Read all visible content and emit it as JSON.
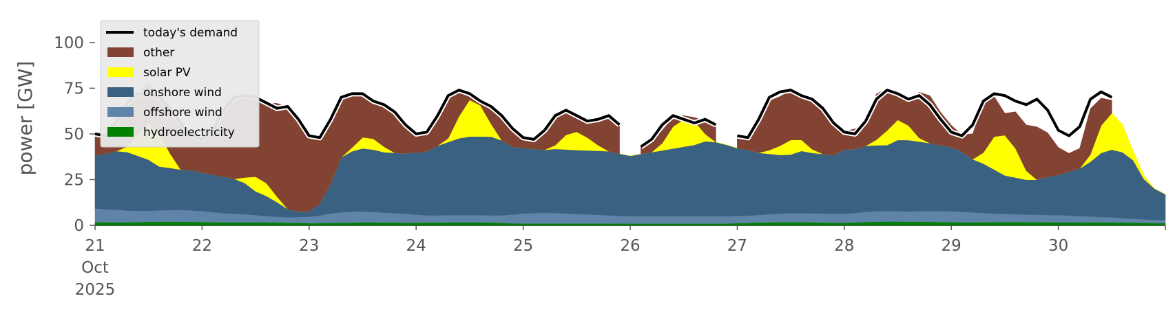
{
  "chart_data": {
    "type": "area",
    "ylabel": "power [GW]",
    "ylim": [
      0,
      118
    ],
    "yticks": [
      0,
      25,
      50,
      75,
      100
    ],
    "xlim": [
      21,
      31
    ],
    "xticks": [
      {
        "value": 21,
        "label": "21",
        "sub": [
          "Oct",
          "2025"
        ]
      },
      {
        "value": 22,
        "label": "22"
      },
      {
        "value": 23,
        "label": "23"
      },
      {
        "value": 24,
        "label": "24"
      },
      {
        "value": 25,
        "label": "25"
      },
      {
        "value": 26,
        "label": "26"
      },
      {
        "value": 27,
        "label": "27"
      },
      {
        "value": 28,
        "label": "28"
      },
      {
        "value": 29,
        "label": "29"
      },
      {
        "value": 30,
        "label": "30"
      },
      {
        "value": 31,
        "label": ""
      }
    ],
    "legend_position": "top-left",
    "x": [
      21.0,
      21.1,
      21.2,
      21.3,
      21.4,
      21.5,
      21.6,
      21.7,
      21.8,
      21.9,
      22.0,
      22.1,
      22.2,
      22.3,
      22.4,
      22.5,
      22.6,
      22.7,
      22.8,
      22.9,
      23.0,
      23.1,
      23.2,
      23.3,
      23.4,
      23.5,
      23.6,
      23.7,
      23.8,
      23.9,
      24.0,
      24.1,
      24.2,
      24.3,
      24.4,
      24.5,
      24.6,
      24.7,
      24.8,
      24.9,
      25.0,
      25.1,
      25.2,
      25.3,
      25.4,
      25.5,
      25.6,
      25.7,
      25.8,
      25.9,
      26.0,
      26.1,
      26.2,
      26.3,
      26.4,
      26.5,
      26.6,
      26.7,
      26.8,
      26.9,
      27.0,
      27.1,
      27.2,
      27.3,
      27.4,
      27.5,
      27.6,
      27.7,
      27.8,
      27.9,
      28.0,
      28.1,
      28.2,
      28.3,
      28.4,
      28.5,
      28.6,
      28.7,
      28.8,
      28.9,
      29.0,
      29.1,
      29.2,
      29.3,
      29.4,
      29.5,
      29.6,
      29.7,
      29.8,
      29.9,
      30.0,
      30.1,
      30.2,
      30.3,
      30.4,
      30.5,
      30.6,
      30.7,
      30.8,
      30.9,
      31.0
    ],
    "demand": [
      50,
      49,
      57,
      67,
      72,
      72,
      70,
      64,
      56,
      49,
      47,
      52,
      63,
      70,
      71,
      70,
      67,
      64,
      65,
      58,
      49,
      48,
      58,
      70,
      72,
      72,
      68,
      66,
      62,
      55,
      50,
      51,
      60,
      71,
      74,
      72,
      68,
      65,
      60,
      53,
      48,
      47,
      52,
      60,
      63,
      60,
      57,
      58,
      60,
      55,
      null,
      43,
      47,
      55,
      60,
      58,
      56,
      58,
      55,
      null,
      49,
      48,
      58,
      70,
      73,
      74,
      71,
      69,
      64,
      56,
      51,
      50,
      57,
      69,
      74,
      72,
      69,
      71,
      66,
      58,
      51,
      49,
      55,
      68,
      72,
      71,
      68,
      66,
      69,
      63,
      52,
      49,
      54,
      69,
      73,
      70,
      null,
      null,
      null,
      null,
      null
    ],
    "series": [
      {
        "name": "hydroelectricity",
        "color": "#008000",
        "values": [
          1.8,
          1.6,
          1.6,
          1.6,
          1.8,
          1.9,
          2.0,
          2.0,
          2.0,
          1.9,
          1.8,
          1.7,
          1.6,
          1.6,
          1.6,
          1.6,
          1.6,
          1.5,
          1.4,
          1.3,
          1.2,
          1.2,
          1.3,
          1.4,
          1.5,
          1.6,
          1.6,
          1.5,
          1.5,
          1.4,
          1.4,
          1.5,
          1.5,
          1.6,
          1.6,
          1.6,
          1.6,
          1.5,
          1.3,
          1.1,
          1.0,
          1.0,
          1.0,
          1.0,
          1.0,
          1.0,
          1.0,
          1.0,
          1.0,
          1.0,
          1.0,
          1.0,
          1.0,
          1.0,
          1.0,
          1.0,
          1.0,
          1.0,
          1.0,
          1.0,
          1.2,
          1.3,
          1.5,
          1.6,
          1.7,
          1.7,
          1.7,
          1.6,
          1.5,
          1.4,
          1.4,
          1.6,
          1.8,
          2.0,
          2.1,
          2.1,
          2.0,
          2.0,
          1.9,
          1.8,
          1.7,
          1.6,
          1.6,
          1.6,
          1.7,
          1.8,
          1.8,
          1.7,
          1.7,
          1.6,
          1.6,
          1.6,
          1.6,
          1.6,
          1.6,
          1.6,
          1.5,
          1.4,
          1.3,
          1.2,
          1.2
        ]
      },
      {
        "name": "offshore wind",
        "color": "#5f84a7",
        "values": [
          7.5,
          7.2,
          7.0,
          6.5,
          6.2,
          6.0,
          6.2,
          6.4,
          6.5,
          6.3,
          6.0,
          5.5,
          5.0,
          4.8,
          4.5,
          4.0,
          3.5,
          3.2,
          3.0,
          3.2,
          3.5,
          4.2,
          5.2,
          5.8,
          6.0,
          6.0,
          5.8,
          5.5,
          5.2,
          5.0,
          4.5,
          4.0,
          4.0,
          4.0,
          4.0,
          4.0,
          4.0,
          4.0,
          4.2,
          4.8,
          5.5,
          5.8,
          5.8,
          5.8,
          5.5,
          5.2,
          5.0,
          4.8,
          4.5,
          4.2,
          4.0,
          4.0,
          4.0,
          4.0,
          4.0,
          4.0,
          4.0,
          4.0,
          4.0,
          4.0,
          4.0,
          4.0,
          4.2,
          4.5,
          4.8,
          5.0,
          5.0,
          5.0,
          5.0,
          5.0,
          5.0,
          5.2,
          5.6,
          5.8,
          5.8,
          5.6,
          5.6,
          5.8,
          6.0,
          6.0,
          6.0,
          5.8,
          5.5,
          5.2,
          4.8,
          4.5,
          4.3,
          4.2,
          4.2,
          4.0,
          4.0,
          3.8,
          3.5,
          3.2,
          3.0,
          2.8,
          2.5,
          2.2,
          2.0,
          1.8,
          1.8
        ]
      },
      {
        "name": "onshore wind",
        "color": "#3b6182",
        "values": [
          29,
          30.5,
          32,
          32,
          30,
          28,
          24,
          23,
          22,
          22,
          21,
          20.5,
          20,
          19,
          17,
          13,
          11,
          8,
          4.5,
          3,
          3,
          6.5,
          16,
          30,
          33,
          34.5,
          34,
          33,
          33,
          33,
          34,
          35,
          38,
          40,
          42,
          43,
          43,
          43,
          41,
          37,
          36,
          35,
          34.5,
          35,
          35,
          35,
          35,
          35,
          35,
          34,
          33,
          34,
          35,
          36,
          37,
          38,
          39,
          41,
          40.5,
          39,
          37,
          36,
          34,
          33,
          32,
          32,
          34,
          33,
          32.5,
          32,
          35,
          35,
          36,
          36,
          36,
          39,
          39,
          38,
          37,
          36,
          35,
          33,
          29,
          27,
          24,
          21,
          20,
          19,
          19,
          21,
          22,
          24,
          26,
          30,
          35,
          37,
          36,
          32,
          22,
          17,
          14
        ]
      },
      {
        "name": "solar PV",
        "color": "#ffff00",
        "values": [
          0,
          0,
          0,
          3,
          12,
          20,
          18,
          8,
          0,
          0,
          0,
          0,
          0,
          0,
          3,
          8,
          7,
          3,
          0,
          0,
          0,
          0,
          0,
          0,
          2,
          6,
          6,
          3,
          0,
          0,
          0,
          0,
          0,
          2,
          12,
          20,
          17,
          7,
          0,
          0,
          0,
          0,
          0,
          2,
          8,
          10,
          7,
          3,
          0,
          0,
          0,
          0,
          0,
          4,
          12,
          15,
          13,
          4,
          0,
          0,
          0,
          0,
          0,
          2,
          5,
          8,
          6,
          2,
          0,
          0,
          0,
          0,
          0,
          3,
          8,
          11,
          8,
          2,
          0,
          0,
          0,
          0,
          0,
          6,
          18,
          22,
          16,
          5,
          0,
          0,
          0,
          0,
          0,
          4,
          15,
          20,
          15,
          5,
          2,
          0,
          0
        ]
      },
      {
        "name": "other",
        "color": "#834333",
        "values": [
          10.8,
          10.8,
          16,
          24,
          22,
          22,
          20,
          24,
          25,
          19,
          18,
          24,
          36,
          44,
          44,
          44,
          44,
          51,
          56,
          51,
          43,
          36,
          36,
          33,
          29,
          24,
          21,
          23,
          23,
          16,
          10,
          10,
          15,
          23,
          14,
          4,
          3,
          9,
          14,
          10,
          5,
          5,
          10,
          16,
          12,
          8,
          9,
          13,
          18,
          15,
          null,
          4,
          6,
          7,
          5,
          2,
          2,
          7,
          8,
          null,
          6,
          7,
          17,
          27,
          27,
          27,
          24,
          26,
          24,
          17,
          10,
          11,
          13,
          25,
          23,
          13,
          13,
          25,
          26,
          18,
          12,
          9,
          14,
          27,
          22,
          12,
          20,
          25,
          29,
          24,
          15,
          10,
          11,
          25,
          15,
          7,
          null,
          null,
          null,
          null,
          null
        ]
      }
    ]
  }
}
